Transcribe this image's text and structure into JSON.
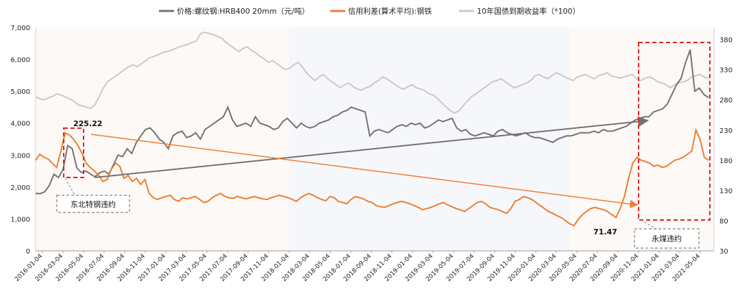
{
  "chart_data": {
    "type": "line",
    "legend": {
      "placement": "top-center",
      "entries": [
        {
          "label": "价格:螺纹钢:HRB400 20mm（元/吨）",
          "color": "#767171"
        },
        {
          "label": "信用利差(算术平均):钢铁",
          "color": "#ED7D31"
        },
        {
          "label": "10年国债到期收益率（*100）",
          "color": "#C9C9C9"
        }
      ]
    },
    "y_left": {
      "min": 0,
      "max": 7000,
      "ticks": [
        "0",
        "1,000",
        "2,000",
        "3,000",
        "4,000",
        "5,000",
        "6,000",
        "7,000"
      ]
    },
    "y_right": {
      "min": 30,
      "max": 400,
      "ticks": [
        "30",
        "80",
        "130",
        "180",
        "230",
        "280",
        "330",
        "380"
      ]
    },
    "x_ticks": [
      "2016-01-04",
      "2016-03-04",
      "2016-05-04",
      "2016-07-04",
      "2016-09-04",
      "2016-11-04",
      "2017-01-04",
      "2017-03-04",
      "2017-05-04",
      "2017-07-04",
      "2017-09-04",
      "2017-11-04",
      "2018-01-04",
      "2018-03-04",
      "2018-05-04",
      "2018-07-04",
      "2018-09-04",
      "2018-11-04",
      "2019-01-04",
      "2019-03-04",
      "2019-05-04",
      "2019-07-04",
      "2019-09-04",
      "2019-11-04",
      "2020-01-04",
      "2020-03-04",
      "2020-05-04",
      "2020-07-04",
      "2020-09-04",
      "2020-11-04",
      "2021-01-04",
      "2021-03-04",
      "2021-05-04"
    ],
    "series": [
      {
        "name": "价格:螺纹钢:HRB400 20mm（元/吨）",
        "axis": "left",
        "color": "#767171",
        "values": [
          1800,
          1790,
          1850,
          2050,
          2400,
          2300,
          2550,
          3300,
          3200,
          2600,
          2450,
          2500,
          2400,
          2320,
          2450,
          2500,
          2400,
          2700,
          3000,
          2950,
          3200,
          3050,
          3400,
          3600,
          3800,
          3850,
          3700,
          3500,
          3400,
          3200,
          3600,
          3700,
          3750,
          3550,
          3600,
          3700,
          3500,
          3800,
          3900,
          4000,
          4100,
          4200,
          4500,
          4100,
          3900,
          3950,
          4000,
          3900,
          4200,
          4000,
          3950,
          3900,
          3800,
          3850,
          4050,
          4150,
          4000,
          3850,
          4000,
          3900,
          3850,
          3900,
          4000,
          4050,
          4100,
          4200,
          4250,
          4350,
          4400,
          4500,
          4450,
          4400,
          4350,
          3600,
          3750,
          3800,
          3750,
          3700,
          3800,
          3900,
          3950,
          3900,
          4000,
          3950,
          4000,
          3850,
          3900,
          4000,
          4100,
          4050,
          4100,
          4150,
          3850,
          3750,
          3800,
          3650,
          3600,
          3650,
          3700,
          3650,
          3600,
          3750,
          3800,
          3700,
          3650,
          3600,
          3650,
          3700,
          3600,
          3550,
          3550,
          3500,
          3450,
          3400,
          3500,
          3550,
          3600,
          3600,
          3650,
          3700,
          3700,
          3700,
          3750,
          3700,
          3800,
          3750,
          3750,
          3800,
          3850,
          3900,
          4000,
          4100,
          4150,
          4200,
          4200,
          4350,
          4400,
          4450,
          4600,
          4900,
          5200,
          5400,
          5900,
          6300,
          5000,
          5100,
          4900,
          4800
        ],
        "annotations": [
          {
            "label": "东北特钢违约",
            "box_color": "#808080"
          },
          {
            "label": "永煤违约",
            "box_color": "#808080"
          }
        ]
      },
      {
        "name": "信用利差(算术平均):钢铁",
        "axis": "right",
        "color": "#ED7D31",
        "values": [
          180,
          190,
          185,
          182,
          175,
          168,
          195,
          225.22,
          222,
          215,
          205,
          192,
          175,
          168,
          162,
          155,
          145,
          148,
          165,
          175,
          170,
          150,
          155,
          145,
          150,
          140,
          148,
          125,
          118,
          115,
          118,
          120,
          122,
          115,
          112,
          118,
          116,
          118,
          120,
          115,
          110,
          112,
          118,
          122,
          125,
          120,
          118,
          117,
          120,
          118,
          116,
          118,
          120,
          118,
          116,
          115,
          118,
          120,
          122,
          120,
          118,
          115,
          112,
          118,
          122,
          125,
          122,
          118,
          115,
          113,
          120,
          118,
          112,
          110,
          108,
          115,
          120,
          118,
          116,
          112,
          110,
          105,
          103,
          102,
          105,
          108,
          110,
          112,
          110,
          108,
          105,
          102,
          98,
          100,
          102,
          105,
          108,
          110,
          106,
          103,
          100,
          98,
          95,
          100,
          105,
          110,
          112,
          108,
          102,
          100,
          98,
          95,
          92,
          100,
          112,
          115,
          120,
          118,
          115,
          110,
          105,
          100,
          95,
          92,
          88,
          85,
          80,
          75,
          71.47,
          82,
          90,
          95,
          100,
          102,
          100,
          98,
          95,
          90,
          85,
          100,
          120,
          150,
          175,
          185,
          180,
          178,
          175,
          170,
          172,
          168,
          170,
          175,
          180,
          182,
          185,
          190,
          195,
          230,
          215,
          185,
          180
        ]
      },
      {
        "name": "10年国债到期收益率（*100）",
        "axis": "right",
        "color": "#C9C9C9",
        "values": [
          285,
          282,
          280,
          283,
          286,
          290,
          288,
          285,
          282,
          278,
          272,
          270,
          268,
          266,
          272,
          285,
          300,
          310,
          315,
          320,
          325,
          330,
          335,
          338,
          335,
          340,
          345,
          350,
          352,
          355,
          358,
          360,
          362,
          365,
          368,
          370,
          372,
          375,
          378,
          390,
          392,
          390,
          388,
          385,
          382,
          375,
          370,
          365,
          360,
          365,
          368,
          362,
          358,
          352,
          348,
          342,
          345,
          340,
          335,
          330,
          332,
          338,
          342,
          335,
          325,
          318,
          312,
          318,
          322,
          315,
          310,
          305,
          300,
          305,
          308,
          302,
          298,
          296,
          300,
          302,
          308,
          312,
          318,
          315,
          310,
          305,
          300,
          298,
          302,
          305,
          300,
          298,
          295,
          290,
          288,
          282,
          275,
          268,
          262,
          258,
          262,
          270,
          278,
          285,
          290,
          295,
          300,
          305,
          310,
          312,
          315,
          310,
          305,
          300,
          302,
          305,
          308,
          312,
          320,
          322,
          318,
          315,
          320,
          325,
          322,
          318,
          315,
          312,
          318,
          320,
          322,
          318,
          315,
          320,
          322,
          325,
          320,
          318,
          316,
          318,
          320,
          322,
          315,
          312,
          316,
          318,
          315,
          310,
          308,
          305,
          300,
          305,
          308,
          310,
          312,
          318,
          320,
          322,
          318,
          315
        ]
      }
    ],
    "point_labels": [
      {
        "text": "225.22"
      },
      {
        "text": "71.47"
      }
    ]
  }
}
